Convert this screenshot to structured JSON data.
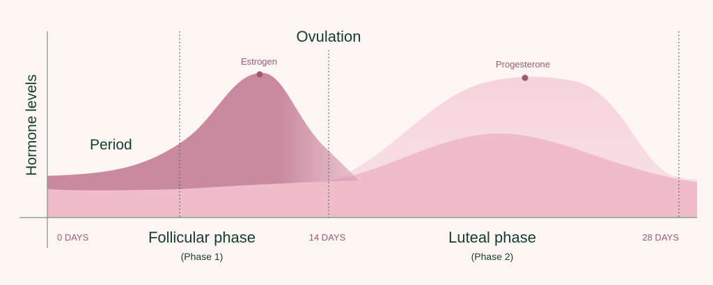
{
  "axis": {
    "ylabel": "Hormone levels"
  },
  "labels": {
    "period": "Period",
    "ovulation": "Ovulation",
    "estrogen": "Estrogen",
    "progesterone": "Progesterone"
  },
  "days": {
    "start": "0 DAYS",
    "mid": "14 DAYS",
    "end": "28 DAYS"
  },
  "phases": {
    "follicular": {
      "name": "Follicular phase",
      "sub": "(Phase 1)"
    },
    "luteal": {
      "name": "Luteal phase",
      "sub": "(Phase 2)"
    }
  },
  "colors": {
    "background": "#fdf6f3",
    "text_dark": "#153c30",
    "text_mauve": "#9c5a73",
    "estrogen_fill": "#c98a9f",
    "progesterone_fill": "#f5cdd8",
    "base_fill": "#efbccb",
    "marker": "#9c5a73"
  }
}
